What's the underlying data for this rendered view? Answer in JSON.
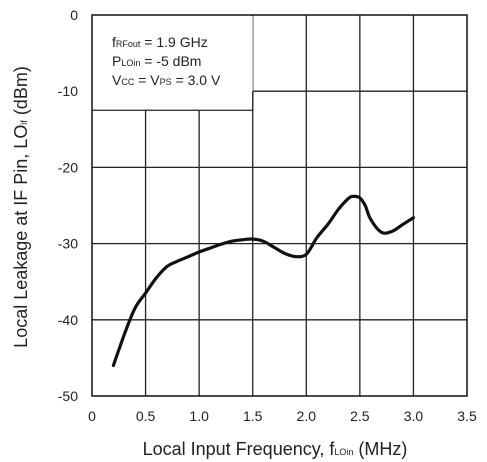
{
  "chart_data": {
    "type": "line",
    "title": "",
    "xlabel": {
      "main": "Local Input Frequency, f",
      "sub": "LOin",
      "tail": " (MHz)"
    },
    "ylabel": {
      "main": "Local Leakage at IF Pin,  LO",
      "sub": "if",
      "tail": "  (dBm)"
    },
    "xlim": [
      0,
      3.5
    ],
    "ylim": [
      -50,
      0
    ],
    "x_ticks": [
      "0",
      "0.5",
      "1.0",
      "1.5",
      "2.0",
      "2.5",
      "3.0",
      "3.5"
    ],
    "y_ticks": [
      "0",
      "-10",
      "-20",
      "-30",
      "-40",
      "-50"
    ],
    "grid": true,
    "annotations": [
      {
        "pre": "f",
        "sub": "RFout",
        "post": " = 1.9 GHz"
      },
      {
        "pre": "P",
        "sub": "LOin",
        "post": " = -5 dBm"
      },
      {
        "pre": "V",
        "sub": "CC",
        "post": " = V",
        "sub2": "PS",
        "post2": " = 3.0 V"
      }
    ],
    "series": [
      {
        "x": [
          0.2,
          0.3,
          0.4,
          0.5,
          0.6,
          0.7,
          0.8,
          0.9,
          1.0,
          1.1,
          1.2,
          1.3,
          1.4,
          1.5,
          1.6,
          1.7,
          1.8,
          1.9,
          2.0,
          2.1,
          2.2,
          2.3,
          2.4,
          2.45,
          2.5,
          2.55,
          2.6,
          2.7,
          2.8,
          2.9,
          3.0
        ],
        "values": [
          -46,
          -42,
          -38.5,
          -36.5,
          -34.5,
          -33,
          -32.3,
          -31.7,
          -31.1,
          -30.6,
          -30.1,
          -29.7,
          -29.5,
          -29.4,
          -29.7,
          -30.5,
          -31.3,
          -31.7,
          -31.4,
          -29.2,
          -27.5,
          -25.5,
          -24,
          -23.8,
          -24,
          -25,
          -26.8,
          -28.5,
          -28.4,
          -27.5,
          -26.6
        ]
      }
    ]
  }
}
